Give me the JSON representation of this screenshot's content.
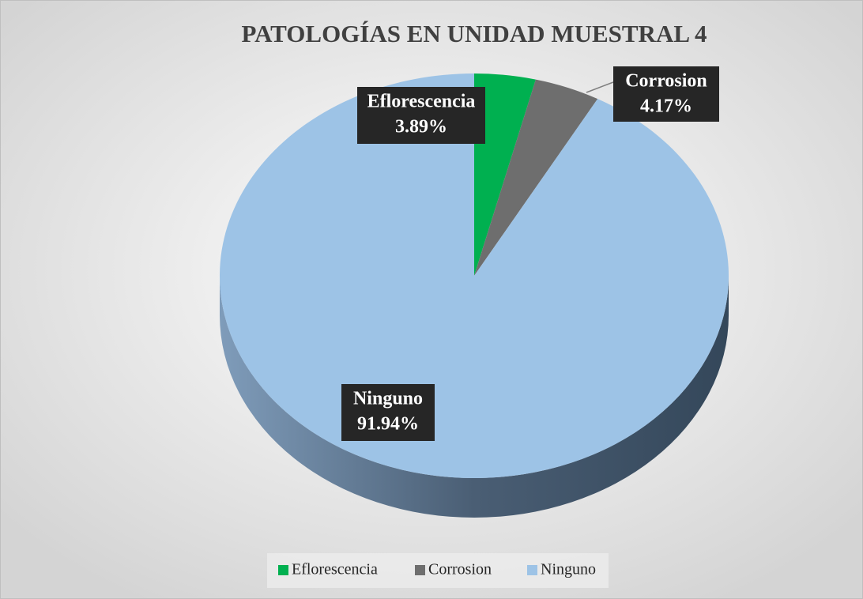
{
  "chart_data": {
    "type": "pie",
    "title": "PATOLOGÍAS EN UNIDAD MUESTRAL 4",
    "categories": [
      "Eflorescencia",
      "Corrosion",
      "Ninguno"
    ],
    "values": [
      3.89,
      4.17,
      91.94
    ],
    "value_labels": [
      "3.89%",
      "4.17%",
      "91.94%"
    ],
    "colors": [
      "#00b050",
      "#6e6e6e",
      "#9dc3e6"
    ],
    "legend": "bottom"
  }
}
